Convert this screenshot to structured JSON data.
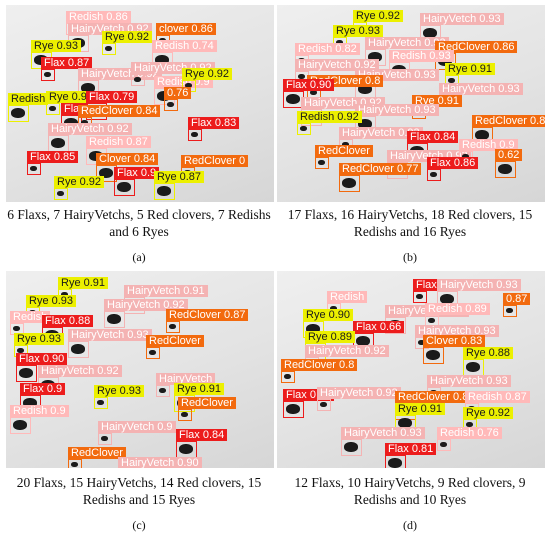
{
  "panels": [
    {
      "caption": "6 Flaxs, 7 HairyVetchs, 5 Red clovers, 7 Redishs and 6 Ryes",
      "label": "(a)",
      "detections": [
        {
          "c": "rd",
          "t": "Redish 0.86"
        },
        {
          "c": "hv",
          "t": "HairyVetch 0.92"
        },
        {
          "c": "rc",
          "t": "clover 0.86"
        },
        {
          "c": "ry",
          "t": "Rye 0.93"
        },
        {
          "c": "ry",
          "t": "Rye 0.92"
        },
        {
          "c": "rd",
          "t": "Redish 0.74"
        },
        {
          "c": "fx",
          "t": "Flax 0.87"
        },
        {
          "c": "hv",
          "t": "HairyVetch 0.92"
        },
        {
          "c": "hv",
          "t": "HairyVetch 0.92"
        },
        {
          "c": "rd",
          "t": "Redish 0.9"
        },
        {
          "c": "ry",
          "t": "Rye 0.92"
        },
        {
          "c": "ry",
          "t": "Redish"
        },
        {
          "c": "ry",
          "t": "Rye 0.92"
        },
        {
          "c": "fx",
          "t": "Flax 0.79"
        },
        {
          "c": "rc",
          "t": "0.76"
        },
        {
          "c": "fx",
          "t": "Flax"
        },
        {
          "c": "rc",
          "t": "RedClover 0.84"
        },
        {
          "c": "hv",
          "t": "HairyVetch 0.92"
        },
        {
          "c": "fx",
          "t": "Flax 0.83"
        },
        {
          "c": "rd",
          "t": "Redish 0.87"
        },
        {
          "c": "fx",
          "t": "Flax 0.85"
        },
        {
          "c": "rc",
          "t": "Clover 0.84"
        },
        {
          "c": "rc",
          "t": "RedClover 0"
        },
        {
          "c": "fx",
          "t": "Flax 0.9"
        },
        {
          "c": "ry",
          "t": "Rye 0.92"
        },
        {
          "c": "ry",
          "t": "Rye 0.87"
        }
      ]
    },
    {
      "caption": "17 Flaxs, 16 HairyVetchs, 18 Red clovers, 15 Redishs and 16 Ryes",
      "label": "(b)",
      "detections": [
        {
          "c": "ry",
          "t": "Rye 0.92"
        },
        {
          "c": "hv",
          "t": "HairyVetch 0.93"
        },
        {
          "c": "ry",
          "t": "Rye 0.93"
        },
        {
          "c": "hv",
          "t": "HairyVetch 0.93"
        },
        {
          "c": "rd",
          "t": "Redish 0.82"
        },
        {
          "c": "rc",
          "t": "RedClover 0.86"
        },
        {
          "c": "hv",
          "t": "HairyVetch 0.92"
        },
        {
          "c": "rd",
          "t": "Redish 0.93"
        },
        {
          "c": "ry",
          "t": "Rye 0.91"
        },
        {
          "c": "hv",
          "t": "HairyVetch 0.93"
        },
        {
          "c": "rc",
          "t": "RedClover 0.8"
        },
        {
          "c": "fx",
          "t": "Flax 0.90"
        },
        {
          "c": "hv",
          "t": "HairyVetch 0.93"
        },
        {
          "c": "hv",
          "t": "HairyVetch 0.92"
        },
        {
          "c": "rc",
          "t": "Rye 0.91"
        },
        {
          "c": "hv",
          "t": "HairyVetch 0.93"
        },
        {
          "c": "ry",
          "t": "Redish 0.92"
        },
        {
          "c": "rc",
          "t": "RedClover 0.88"
        },
        {
          "c": "hv",
          "t": "HairyVetch 0.93"
        },
        {
          "c": "fx",
          "t": "Flax 0.84"
        },
        {
          "c": "rc",
          "t": "RedClover"
        },
        {
          "c": "hv",
          "t": "HairyVetch 0.93"
        },
        {
          "c": "rd",
          "t": "Redish 0.9"
        },
        {
          "c": "rc",
          "t": "RedClover 0.77"
        },
        {
          "c": "fx",
          "t": "Flax 0.86"
        },
        {
          "c": "rc",
          "t": "0.62"
        }
      ]
    },
    {
      "caption": "20 Flaxs, 15 HairyVetchs, 14 Red clovers, 15 Redishs and 15 Ryes",
      "label": "(c)",
      "detections": [
        {
          "c": "ry",
          "t": "Rye 0.91"
        },
        {
          "c": "hv",
          "t": "HairyVetch 0.91"
        },
        {
          "c": "ry",
          "t": "Rye 0.93"
        },
        {
          "c": "hv",
          "t": "HairyVetch 0.92"
        },
        {
          "c": "rd",
          "t": "Redish"
        },
        {
          "c": "fx",
          "t": "Flax 0.88"
        },
        {
          "c": "rc",
          "t": "RedClover 0.87"
        },
        {
          "c": "hv",
          "t": "HairyVetch 0.93"
        },
        {
          "c": "ry",
          "t": "Rye 0.93"
        },
        {
          "c": "fx",
          "t": "Flax 0.90"
        },
        {
          "c": "rc",
          "t": "RedClover"
        },
        {
          "c": "hv",
          "t": "HairyVetch 0.92"
        },
        {
          "c": "hv",
          "t": "HairyVetch"
        },
        {
          "c": "fx",
          "t": "Flax 0.9"
        },
        {
          "c": "ry",
          "t": "Rye 0.93"
        },
        {
          "c": "ry",
          "t": "Rye 0.91"
        },
        {
          "c": "rc",
          "t": "RedClover"
        },
        {
          "c": "rd",
          "t": "Redish 0.9"
        },
        {
          "c": "hv",
          "t": "HairyVetch 0.9"
        },
        {
          "c": "fx",
          "t": "Flax 0.84"
        },
        {
          "c": "rc",
          "t": "RedClover"
        },
        {
          "c": "hv",
          "t": "HairyVetch 0.90"
        }
      ]
    },
    {
      "caption": "12 Flaxs, 10 HairyVetchs, 9 Red clovers, 9 Redishs and 10 Ryes",
      "label": "(d)",
      "detections": [
        {
          "c": "fx",
          "t": "Flax 0.9"
        },
        {
          "c": "hv",
          "t": "HairyVetch 0.93"
        },
        {
          "c": "rd",
          "t": "Redish"
        },
        {
          "c": "hv",
          "t": "HairyVetch 0.93"
        },
        {
          "c": "rc",
          "t": "0.87"
        },
        {
          "c": "ry",
          "t": "Rye 0.90"
        },
        {
          "c": "rd",
          "t": "Redish 0.89"
        },
        {
          "c": "fx",
          "t": "Flax 0.66"
        },
        {
          "c": "hv",
          "t": "HairyVetch 0.93"
        },
        {
          "c": "ry",
          "t": "Rye 0.89"
        },
        {
          "c": "hv",
          "t": "HairyVetch 0.92"
        },
        {
          "c": "rc",
          "t": "Clover 0.83"
        },
        {
          "c": "rc",
          "t": "RedClover 0.8"
        },
        {
          "c": "ry",
          "t": "Rye 0.88"
        },
        {
          "c": "hv",
          "t": "HairyVetch 0.93"
        },
        {
          "c": "fx",
          "t": "Flax 0.71"
        },
        {
          "c": "hv",
          "t": "HairyVetch 0.92"
        },
        {
          "c": "rc",
          "t": "RedClover 0.86"
        },
        {
          "c": "rd",
          "t": "Redish 0.87"
        },
        {
          "c": "ry",
          "t": "Rye 0.91"
        },
        {
          "c": "ry",
          "t": "Rye 0.92"
        },
        {
          "c": "hv",
          "t": "HairyVetch 0.93"
        },
        {
          "c": "rd",
          "t": "Redish 0.76"
        },
        {
          "c": "fx",
          "t": "Flax 0.81"
        }
      ]
    }
  ]
}
